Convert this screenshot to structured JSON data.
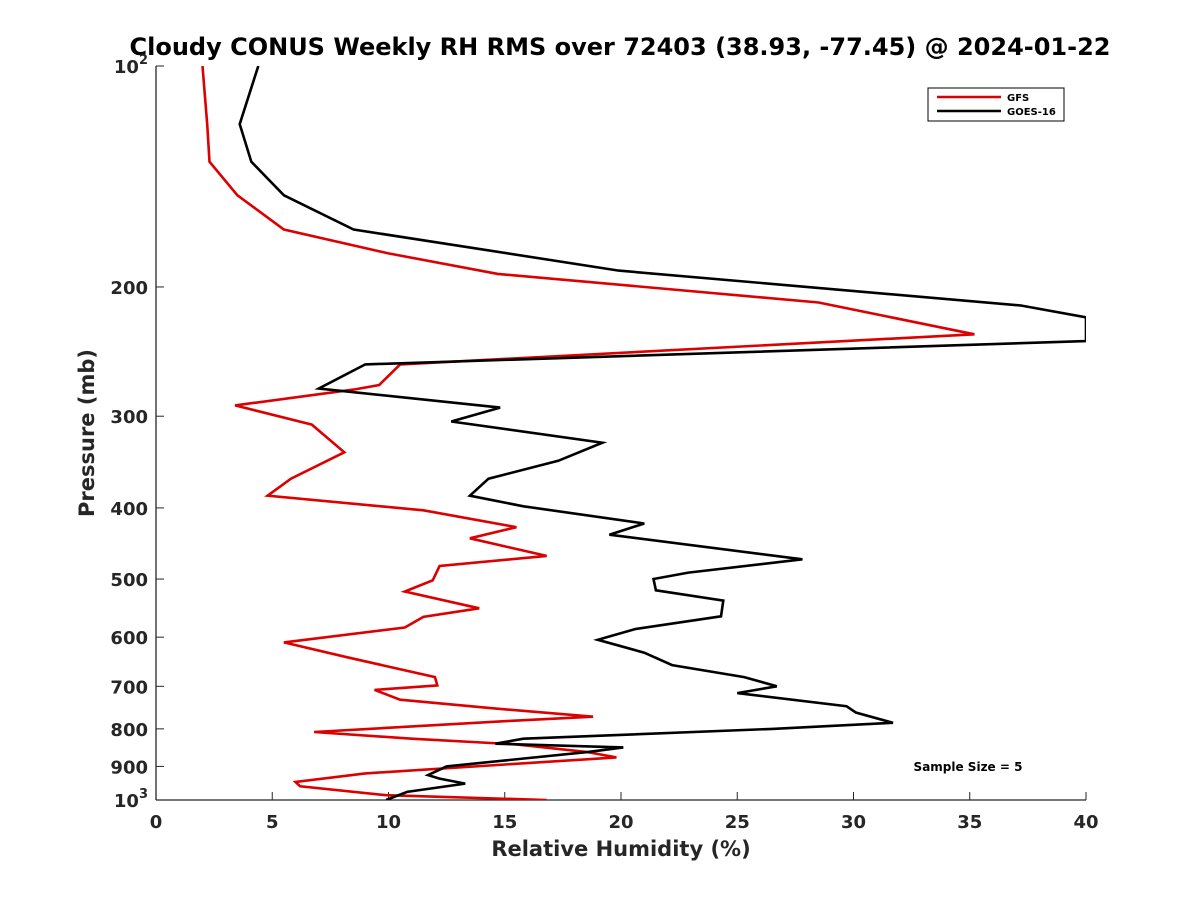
{
  "chart_data": {
    "type": "line",
    "title": "Cloudy CONUS Weekly RH RMS over 72403 (38.93, -77.45) @ 2024-01-22",
    "xlabel": "Relative Humidity (%)",
    "ylabel": "Pressure (mb)",
    "xlim": [
      0,
      40
    ],
    "ylim": [
      100,
      1000
    ],
    "y_scale": "log",
    "y_reversed": true,
    "grid": false,
    "legend_position": "top-right",
    "x_ticks": [
      "0",
      "5",
      "10",
      "15",
      "20",
      "25",
      "30",
      "35",
      "40"
    ],
    "y_ticks": [
      {
        "value": 100,
        "base": "10",
        "exp": "2"
      },
      {
        "value": 200,
        "label": "200"
      },
      {
        "value": 300,
        "label": "300"
      },
      {
        "value": 400,
        "label": "400"
      },
      {
        "value": 500,
        "label": "500"
      },
      {
        "value": 600,
        "label": "600"
      },
      {
        "value": 700,
        "label": "700"
      },
      {
        "value": 800,
        "label": "800"
      },
      {
        "value": 900,
        "label": "900"
      },
      {
        "value": 1000,
        "base": "10",
        "exp": "3"
      }
    ],
    "series": [
      {
        "name": "GFS",
        "color": "#dd0000",
        "points": [
          [
            2.0,
            100
          ],
          [
            2.2,
            120
          ],
          [
            2.3,
            135
          ],
          [
            3.5,
            150
          ],
          [
            5.5,
            167
          ],
          [
            10,
            180
          ],
          [
            14.7,
            192
          ],
          [
            28.5,
            210
          ],
          [
            35.2,
            232
          ],
          [
            10.5,
            255
          ],
          [
            9.6,
            272
          ],
          [
            8.5,
            276
          ],
          [
            3.4,
            290
          ],
          [
            6.7,
            308
          ],
          [
            8.1,
            336
          ],
          [
            5.8,
            365
          ],
          [
            4.8,
            385
          ],
          [
            11.5,
            403
          ],
          [
            15.5,
            425
          ],
          [
            13.5,
            440
          ],
          [
            16.8,
            465
          ],
          [
            12.2,
            480
          ],
          [
            11.9,
            502
          ],
          [
            10.7,
            520
          ],
          [
            13.9,
            548
          ],
          [
            11.5,
            563
          ],
          [
            10.7,
            582
          ],
          [
            5.5,
            610
          ],
          [
            8.3,
            640
          ],
          [
            12.0,
            680
          ],
          [
            12.1,
            698
          ],
          [
            9.4,
            708
          ],
          [
            10.5,
            730
          ],
          [
            14.5,
            750
          ],
          [
            18.8,
            770
          ],
          [
            15.3,
            780
          ],
          [
            6.8,
            808
          ],
          [
            11.0,
            825
          ],
          [
            15.5,
            840
          ],
          [
            18.5,
            860
          ],
          [
            19.8,
            875
          ],
          [
            9.0,
            920
          ],
          [
            6.0,
            945
          ],
          [
            6.2,
            958
          ],
          [
            9.9,
            985
          ],
          [
            16.8,
            1000
          ]
        ]
      },
      {
        "name": "GOES-16",
        "color": "#000000",
        "points": [
          [
            4.4,
            100
          ],
          [
            3.6,
            120
          ],
          [
            4.1,
            135
          ],
          [
            5.5,
            150
          ],
          [
            8.5,
            167
          ],
          [
            19.9,
            190
          ],
          [
            37.2,
            212
          ],
          [
            40.0,
            220
          ],
          [
            40.0,
            237
          ],
          [
            9.0,
            255
          ],
          [
            7.0,
            275
          ],
          [
            14.8,
            292
          ],
          [
            12.7,
            305
          ],
          [
            19.2,
            326
          ],
          [
            17.3,
            345
          ],
          [
            14.3,
            365
          ],
          [
            13.5,
            385
          ],
          [
            15.8,
            398
          ],
          [
            21.0,
            420
          ],
          [
            19.5,
            435
          ],
          [
            27.8,
            470
          ],
          [
            22.9,
            490
          ],
          [
            21.4,
            500
          ],
          [
            21.5,
            518
          ],
          [
            24.4,
            535
          ],
          [
            24.3,
            562
          ],
          [
            20.6,
            585
          ],
          [
            19.0,
            605
          ],
          [
            21.0,
            630
          ],
          [
            22.2,
            655
          ],
          [
            25.3,
            680
          ],
          [
            26.7,
            700
          ],
          [
            25.0,
            715
          ],
          [
            29.7,
            745
          ],
          [
            30.1,
            760
          ],
          [
            31.7,
            785
          ],
          [
            26.5,
            800
          ],
          [
            15.8,
            825
          ],
          [
            14.6,
            838
          ],
          [
            20.1,
            848
          ],
          [
            18.6,
            860
          ],
          [
            12.5,
            900
          ],
          [
            11.7,
            925
          ],
          [
            12.2,
            935
          ],
          [
            13.3,
            950
          ],
          [
            10.8,
            975
          ],
          [
            9.9,
            1000
          ]
        ]
      }
    ],
    "annotation": "Sample Size = 5"
  }
}
